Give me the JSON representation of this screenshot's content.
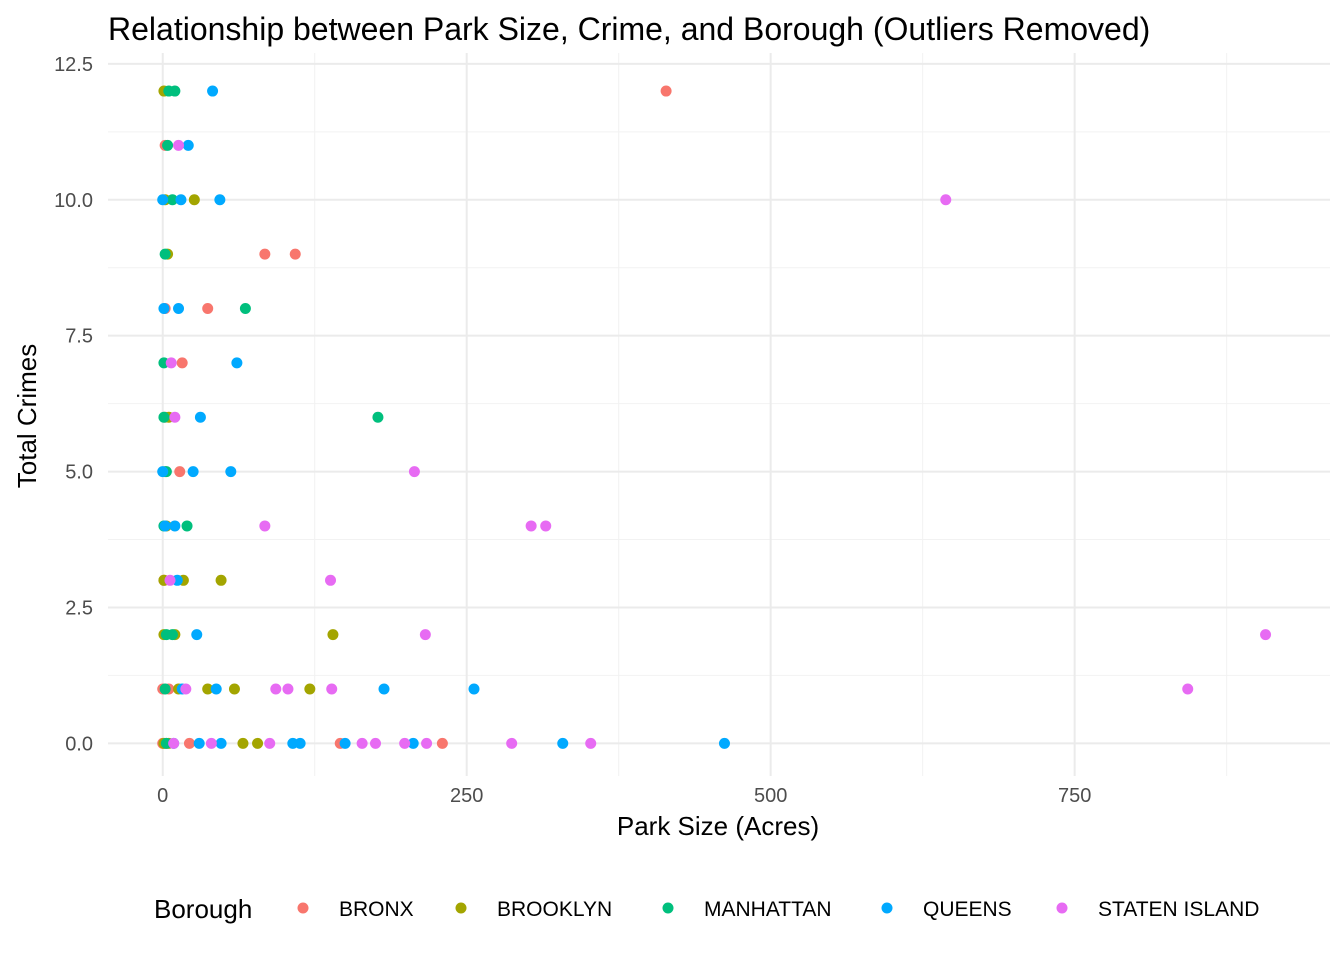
{
  "chart_data": {
    "type": "scatter",
    "title": "Relationship between Park Size, Crime, and Borough (Outliers Removed)",
    "xlabel": "Park Size (Acres)",
    "ylabel": "Total Crimes",
    "xlim": [
      -45,
      960
    ],
    "ylim": [
      -0.6,
      12.7
    ],
    "x_ticks": [
      0,
      250,
      500,
      750
    ],
    "x_tick_labels": [
      "0",
      "250",
      "500",
      "750"
    ],
    "y_ticks": [
      0,
      2.5,
      5,
      7.5,
      10,
      12.5
    ],
    "y_tick_labels": [
      "0.0",
      "2.5",
      "5.0",
      "7.5",
      "10.0",
      "12.5"
    ],
    "grid": true,
    "legend_title": "Borough",
    "legend_position": "bottom",
    "series": [
      {
        "name": "BRONX",
        "color": "#F8766D",
        "points": [
          [
            414,
            12
          ],
          [
            84,
            9
          ],
          [
            109,
            9
          ],
          [
            37,
            8
          ],
          [
            2,
            8
          ],
          [
            16,
            7
          ],
          [
            2,
            6
          ],
          [
            14,
            5
          ],
          [
            1,
            3
          ],
          [
            0,
            1
          ],
          [
            5,
            1
          ],
          [
            0,
            0
          ],
          [
            3,
            0
          ],
          [
            22,
            0
          ],
          [
            146,
            0
          ],
          [
            230,
            0
          ],
          [
            2,
            11
          ]
        ]
      },
      {
        "name": "BROOKLYN",
        "color": "#A3A500",
        "points": [
          [
            1,
            12
          ],
          [
            26,
            10
          ],
          [
            4,
            9
          ],
          [
            5,
            6
          ],
          [
            2,
            5
          ],
          [
            3,
            4
          ],
          [
            17,
            3
          ],
          [
            48,
            3
          ],
          [
            1,
            3
          ],
          [
            1,
            2
          ],
          [
            10,
            2
          ],
          [
            140,
            2
          ],
          [
            37,
            1
          ],
          [
            59,
            1
          ],
          [
            121,
            1
          ],
          [
            13,
            1
          ],
          [
            1,
            0
          ],
          [
            5,
            0
          ],
          [
            66,
            0
          ],
          [
            78,
            0
          ],
          [
            2,
            10
          ]
        ]
      },
      {
        "name": "MANHATTAN",
        "color": "#00BF7D",
        "points": [
          [
            5,
            12
          ],
          [
            10,
            12
          ],
          [
            4,
            11
          ],
          [
            8,
            10
          ],
          [
            2,
            9
          ],
          [
            68,
            8
          ],
          [
            1,
            7
          ],
          [
            177,
            6
          ],
          [
            3,
            5
          ],
          [
            1,
            4
          ],
          [
            20,
            4
          ],
          [
            3,
            2
          ],
          [
            8,
            2
          ],
          [
            2,
            1
          ],
          [
            3,
            0
          ],
          [
            1,
            6
          ]
        ]
      },
      {
        "name": "QUEENS",
        "color": "#00A9FF",
        "points": [
          [
            41,
            12
          ],
          [
            21,
            11
          ],
          [
            47,
            10
          ],
          [
            15,
            10
          ],
          [
            0,
            10
          ],
          [
            13,
            8
          ],
          [
            61,
            7
          ],
          [
            31,
            6
          ],
          [
            56,
            5
          ],
          [
            25,
            5
          ],
          [
            0,
            5
          ],
          [
            10,
            4
          ],
          [
            12,
            3
          ],
          [
            28,
            2
          ],
          [
            44,
            1
          ],
          [
            182,
            1
          ],
          [
            256,
            1
          ],
          [
            16,
            1
          ],
          [
            30,
            0
          ],
          [
            48,
            0
          ],
          [
            107,
            0
          ],
          [
            113,
            0
          ],
          [
            150,
            0
          ],
          [
            206,
            0
          ],
          [
            329,
            0
          ],
          [
            462,
            0
          ],
          [
            9,
            0
          ],
          [
            1,
            8
          ],
          [
            2,
            4
          ]
        ]
      },
      {
        "name": "STATEN ISLAND",
        "color": "#E76BF3",
        "points": [
          [
            13,
            11
          ],
          [
            644,
            10
          ],
          [
            7,
            7
          ],
          [
            207,
            5
          ],
          [
            84,
            4
          ],
          [
            303,
            4
          ],
          [
            315,
            4
          ],
          [
            138,
            3
          ],
          [
            216,
            2
          ],
          [
            907,
            2
          ],
          [
            93,
            1
          ],
          [
            103,
            1
          ],
          [
            139,
            1
          ],
          [
            843,
            1
          ],
          [
            19,
            1
          ],
          [
            9,
            0
          ],
          [
            40,
            0
          ],
          [
            88,
            0
          ],
          [
            164,
            0
          ],
          [
            175,
            0
          ],
          [
            199,
            0
          ],
          [
            217,
            0
          ],
          [
            287,
            0
          ],
          [
            352,
            0
          ],
          [
            10,
            6
          ],
          [
            6,
            3
          ]
        ]
      }
    ]
  }
}
